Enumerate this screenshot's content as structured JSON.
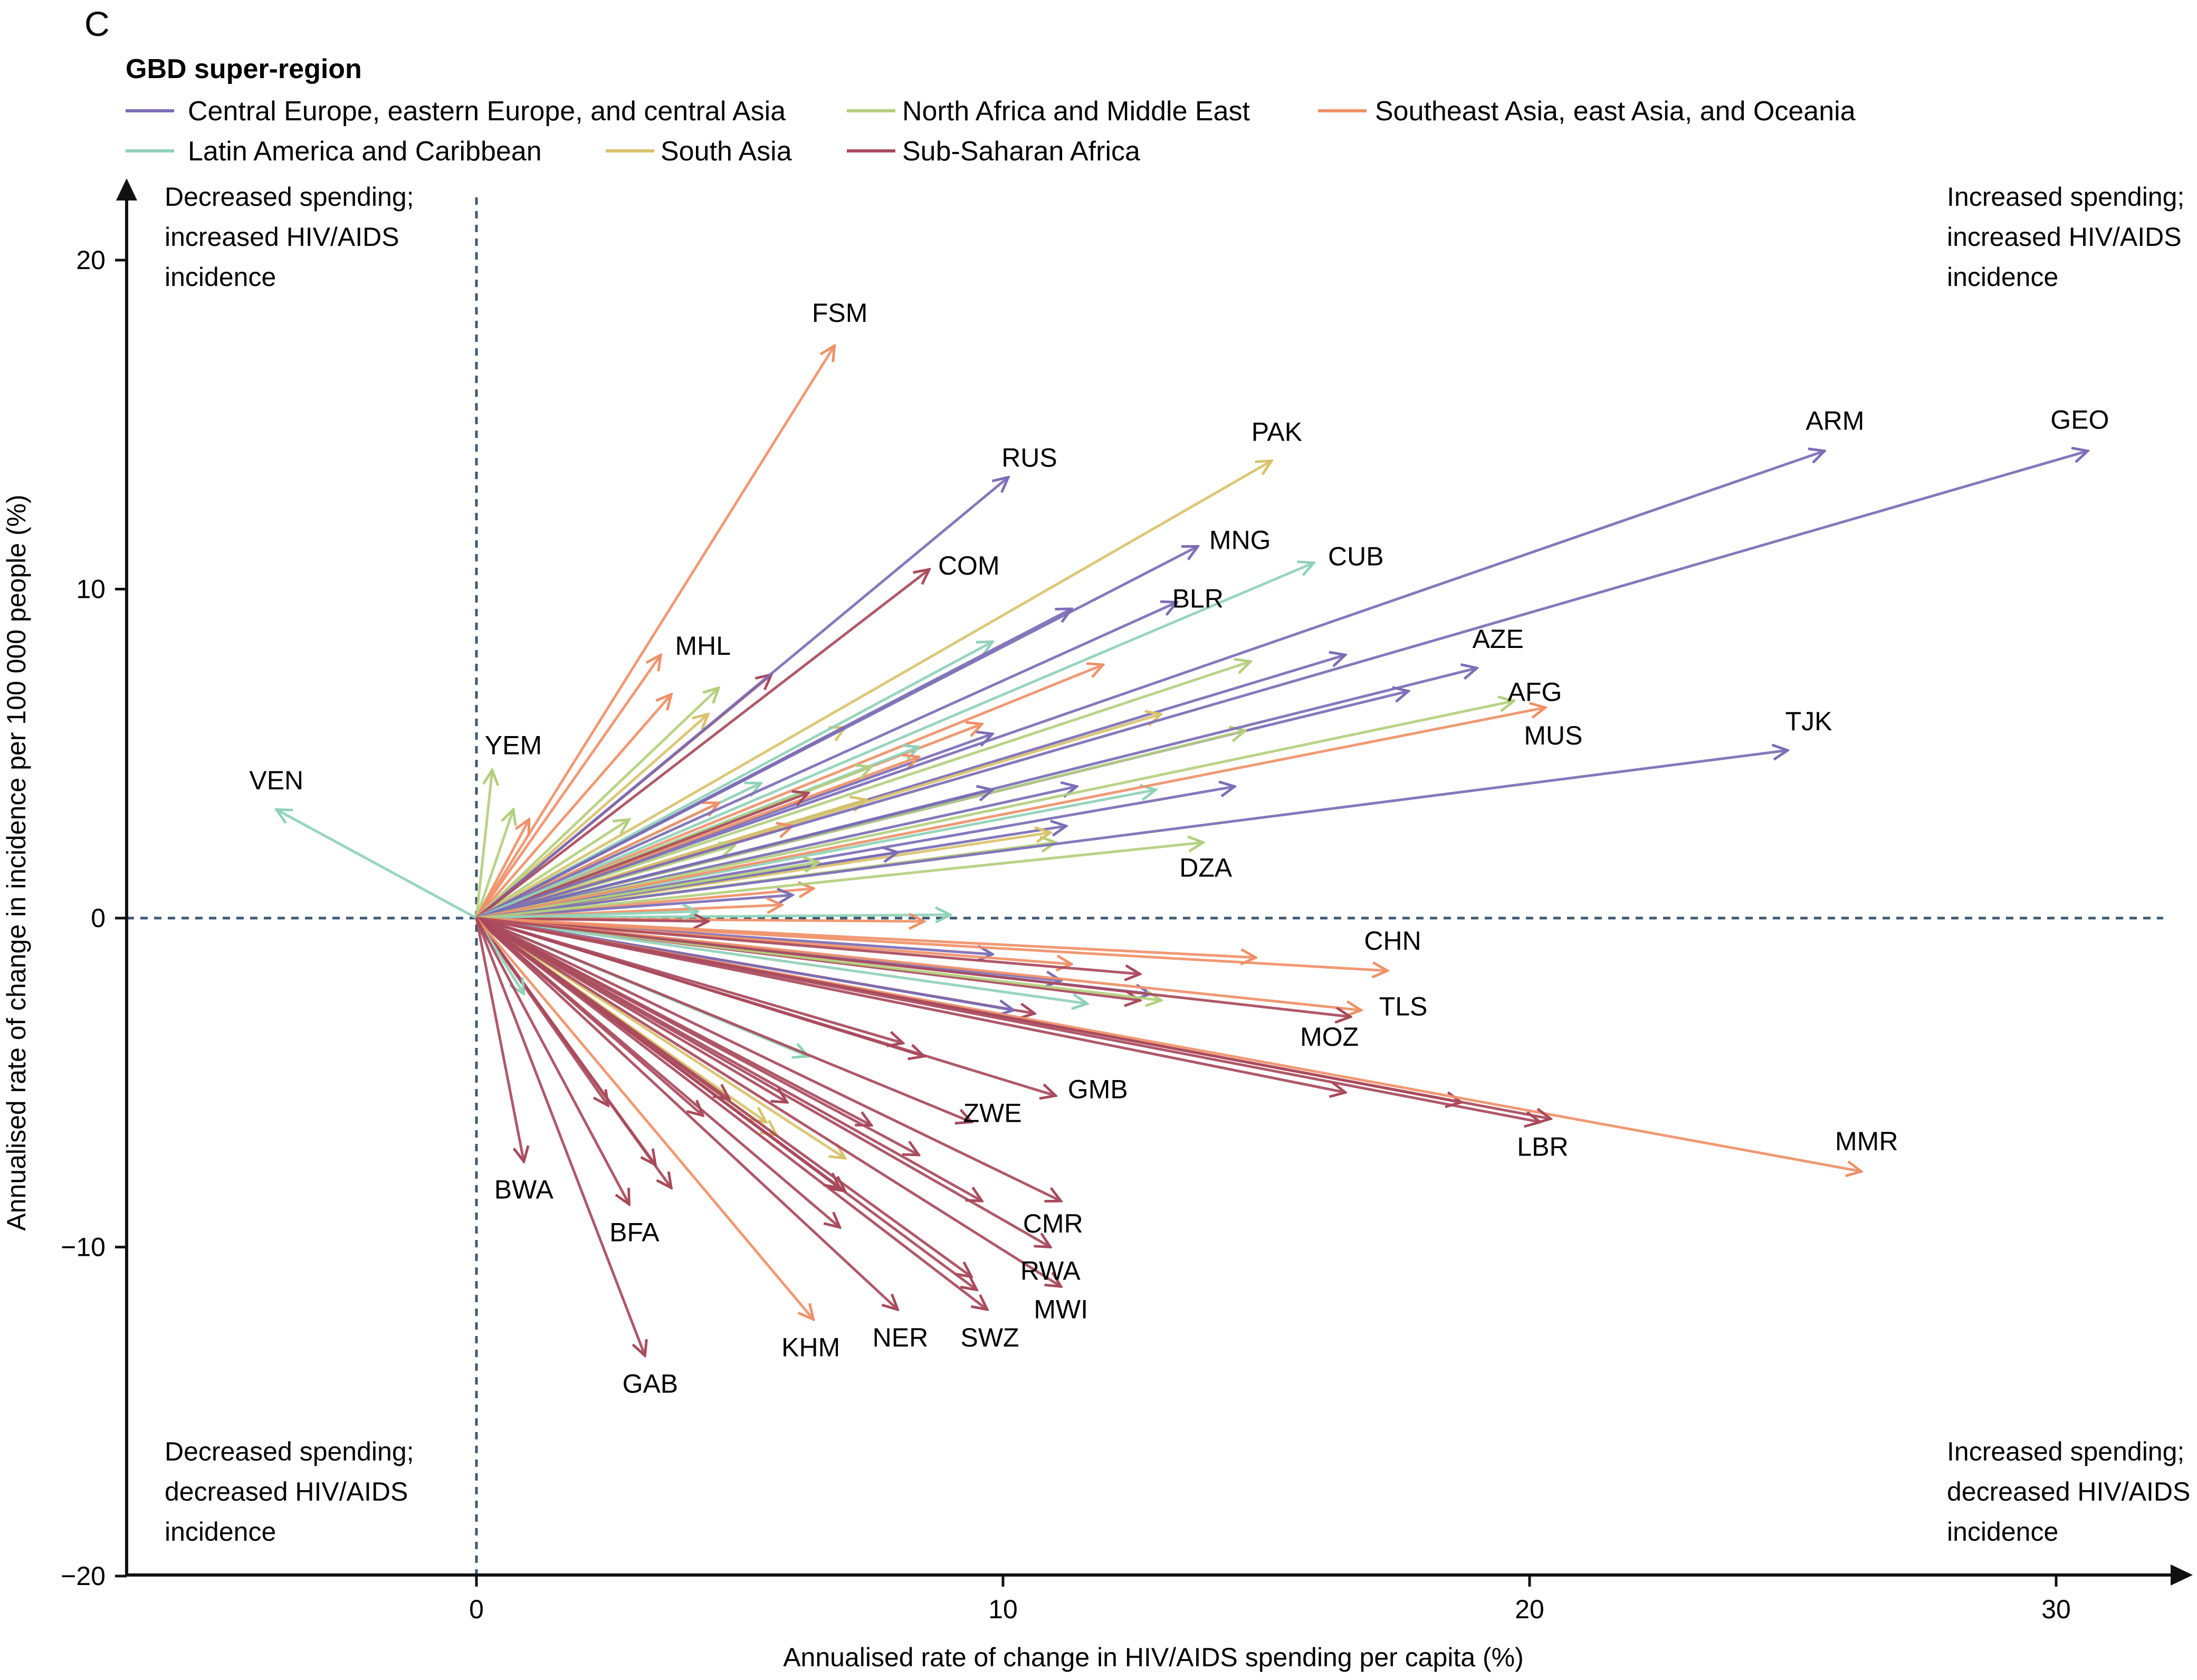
{
  "panel_label": "C",
  "legend": {
    "title": "GBD super-region",
    "items": [
      {
        "name": "Central Europe, eastern Europe, and central Asia",
        "color": "#7b6db5"
      },
      {
        "name": "North Africa and Middle East",
        "color": "#b3cf7d"
      },
      {
        "name": "Southeast Asia, east Asia, and Oceania",
        "color": "#ef9068"
      },
      {
        "name": "Latin America and Caribbean",
        "color": "#8fd1b8"
      },
      {
        "name": "South Asia",
        "color": "#d8c26a"
      },
      {
        "name": "Sub-Saharan Africa",
        "color": "#a84a5c"
      }
    ]
  },
  "quadrants": {
    "top_left": [
      "Decreased spending;",
      "increased HIV/AIDS",
      "incidence"
    ],
    "top_right": [
      "Increased spending;",
      "increased HIV/AIDS",
      "incidence"
    ],
    "bottom_left": [
      "Decreased spending;",
      "decreased HIV/AIDS",
      "incidence"
    ],
    "bottom_right": [
      "Increased spending;",
      "decreased HIV/AIDS",
      "incidence"
    ]
  },
  "chart_data": {
    "type": "scatter",
    "subtype": "vectors from origin",
    "xlabel": "Annualised rate of change in HIV/AIDS spending per capita (%)",
    "ylabel": "Annualised rate of change in incidence per 100 000 people (%)",
    "xlim": [
      -6.7,
      32.5
    ],
    "ylim": [
      -20,
      22
    ],
    "xticks": [
      0,
      10,
      20,
      30
    ],
    "yticks": [
      -20,
      -10,
      0,
      10,
      20
    ],
    "reference_lines": {
      "x": 0,
      "y": 0
    },
    "labeled_points": [
      {
        "label": "VEN",
        "x": -3.8,
        "y": 3.3,
        "region": 3
      },
      {
        "label": "YEM",
        "x": 0.3,
        "y": 4.5,
        "region": 1
      },
      {
        "label": "MHL",
        "x": 3.5,
        "y": 8.0,
        "region": 2
      },
      {
        "label": "FSM",
        "x": 6.8,
        "y": 17.4,
        "region": 2
      },
      {
        "label": "RUS",
        "x": 10.1,
        "y": 13.4,
        "region": 0
      },
      {
        "label": "COM",
        "x": 8.6,
        "y": 10.6,
        "region": 5
      },
      {
        "label": "PAK",
        "x": 15.1,
        "y": 13.9,
        "region": 4
      },
      {
        "label": "MNG",
        "x": 13.7,
        "y": 11.3,
        "region": 0
      },
      {
        "label": "BLR",
        "x": 13.3,
        "y": 9.6,
        "region": 0
      },
      {
        "label": "CUB",
        "x": 15.9,
        "y": 10.8,
        "region": 3
      },
      {
        "label": "ARM",
        "x": 25.6,
        "y": 14.2,
        "region": 0
      },
      {
        "label": "GEO",
        "x": 30.6,
        "y": 14.2,
        "region": 0
      },
      {
        "label": "AZE",
        "x": 19.0,
        "y": 7.6,
        "region": 0
      },
      {
        "label": "AFG",
        "x": 19.7,
        "y": 6.6,
        "region": 1
      },
      {
        "label": "MUS",
        "x": 20.3,
        "y": 6.4,
        "region": 2
      },
      {
        "label": "TJK",
        "x": 24.9,
        "y": 5.1,
        "region": 0
      },
      {
        "label": "DZA",
        "x": 13.8,
        "y": 2.3,
        "region": 1
      },
      {
        "label": "CHN",
        "x": 17.3,
        "y": -1.6,
        "region": 2
      },
      {
        "label": "TLS",
        "x": 16.8,
        "y": -2.8,
        "region": 2
      },
      {
        "label": "MOZ",
        "x": 16.6,
        "y": -3.0,
        "region": 5
      },
      {
        "label": "MMR",
        "x": 26.3,
        "y": -7.7,
        "region": 2
      },
      {
        "label": "LBR",
        "x": 20.4,
        "y": -6.1,
        "region": 5
      },
      {
        "label": "GMB",
        "x": 11.0,
        "y": -5.4,
        "region": 5
      },
      {
        "label": "ZWE",
        "x": 9.4,
        "y": -6.2,
        "region": 5
      },
      {
        "label": "CMR",
        "x": 11.1,
        "y": -8.6,
        "region": 5
      },
      {
        "label": "RWA",
        "x": 10.9,
        "y": -10.0,
        "region": 5
      },
      {
        "label": "MWI",
        "x": 11.1,
        "y": -11.2,
        "region": 5
      },
      {
        "label": "SWZ",
        "x": 9.7,
        "y": -11.9,
        "region": 5
      },
      {
        "label": "NER",
        "x": 8.0,
        "y": -11.9,
        "region": 5
      },
      {
        "label": "KHM",
        "x": 6.4,
        "y": -12.2,
        "region": 2
      },
      {
        "label": "GAB",
        "x": 3.2,
        "y": -13.3,
        "region": 5
      },
      {
        "label": "BFA",
        "x": 2.9,
        "y": -8.7,
        "region": 5
      },
      {
        "label": "BWA",
        "x": 0.9,
        "y": -7.4,
        "region": 5
      }
    ],
    "unlabeled_points": [
      {
        "x": 0.7,
        "y": 3.3,
        "region": 1
      },
      {
        "x": 1.0,
        "y": 3.0,
        "region": 2
      },
      {
        "x": 2.9,
        "y": 3.0,
        "region": 1
      },
      {
        "x": 3.7,
        "y": 6.8,
        "region": 2
      },
      {
        "x": 4.6,
        "y": 7.0,
        "region": 1
      },
      {
        "x": 4.4,
        "y": 6.2,
        "region": 4
      },
      {
        "x": 5.6,
        "y": 7.4,
        "region": 5
      },
      {
        "x": 7.0,
        "y": 5.8,
        "region": 4
      },
      {
        "x": 9.8,
        "y": 8.4,
        "region": 3
      },
      {
        "x": 11.3,
        "y": 9.4,
        "region": 0
      },
      {
        "x": 11.9,
        "y": 7.7,
        "region": 2
      },
      {
        "x": 14.7,
        "y": 7.8,
        "region": 1
      },
      {
        "x": 16.5,
        "y": 8.0,
        "region": 0
      },
      {
        "x": 17.7,
        "y": 6.9,
        "region": 0
      },
      {
        "x": 14.6,
        "y": 5.7,
        "region": 1
      },
      {
        "x": 13.0,
        "y": 6.2,
        "region": 4
      },
      {
        "x": 9.8,
        "y": 5.6,
        "region": 0
      },
      {
        "x": 9.6,
        "y": 5.9,
        "region": 2
      },
      {
        "x": 8.4,
        "y": 5.2,
        "region": 3
      },
      {
        "x": 8.4,
        "y": 4.9,
        "region": 2
      },
      {
        "x": 7.5,
        "y": 4.6,
        "region": 1
      },
      {
        "x": 5.4,
        "y": 4.1,
        "region": 3
      },
      {
        "x": 4.6,
        "y": 3.5,
        "region": 2
      },
      {
        "x": 6.3,
        "y": 3.8,
        "region": 5
      },
      {
        "x": 7.4,
        "y": 3.6,
        "region": 4
      },
      {
        "x": 9.8,
        "y": 3.9,
        "region": 0
      },
      {
        "x": 11.4,
        "y": 4.0,
        "region": 0
      },
      {
        "x": 12.9,
        "y": 3.9,
        "region": 3
      },
      {
        "x": 14.4,
        "y": 4.0,
        "region": 0
      },
      {
        "x": 11.2,
        "y": 2.8,
        "region": 0
      },
      {
        "x": 11.0,
        "y": 2.3,
        "region": 1
      },
      {
        "x": 10.9,
        "y": 2.6,
        "region": 4
      },
      {
        "x": 8.0,
        "y": 2.0,
        "region": 0
      },
      {
        "x": 6.5,
        "y": 1.7,
        "region": 1
      },
      {
        "x": 6.0,
        "y": 2.8,
        "region": 2
      },
      {
        "x": 4.9,
        "y": 2.2,
        "region": 1
      },
      {
        "x": 6.4,
        "y": 0.9,
        "region": 2
      },
      {
        "x": 6.0,
        "y": 0.7,
        "region": 0
      },
      {
        "x": 5.8,
        "y": 0.4,
        "region": 2
      },
      {
        "x": 9.0,
        "y": 0.1,
        "region": 3
      },
      {
        "x": 8.5,
        "y": -0.1,
        "region": 2
      },
      {
        "x": 4.4,
        "y": -0.1,
        "region": 5
      },
      {
        "x": 4.2,
        "y": 0.2,
        "region": 3
      },
      {
        "x": 9.8,
        "y": -1.1,
        "region": 0
      },
      {
        "x": 11.3,
        "y": -1.4,
        "region": 2
      },
      {
        "x": 14.8,
        "y": -1.2,
        "region": 2
      },
      {
        "x": 12.6,
        "y": -1.7,
        "region": 5
      },
      {
        "x": 11.1,
        "y": -1.9,
        "region": 0
      },
      {
        "x": 12.8,
        "y": -2.3,
        "region": 0
      },
      {
        "x": 12.6,
        "y": -2.5,
        "region": 5
      },
      {
        "x": 13.0,
        "y": -2.5,
        "region": 1
      },
      {
        "x": 11.6,
        "y": -2.6,
        "region": 3
      },
      {
        "x": 10.6,
        "y": -2.9,
        "region": 5
      },
      {
        "x": 10.2,
        "y": -2.8,
        "region": 0
      },
      {
        "x": 8.1,
        "y": -3.8,
        "region": 5
      },
      {
        "x": 8.5,
        "y": -4.2,
        "region": 5
      },
      {
        "x": 16.5,
        "y": -5.3,
        "region": 5
      },
      {
        "x": 18.7,
        "y": -5.6,
        "region": 5
      },
      {
        "x": 20.2,
        "y": -6.2,
        "region": 5
      },
      {
        "x": 6.3,
        "y": -4.2,
        "region": 3
      },
      {
        "x": 5.5,
        "y": -6.2,
        "region": 4
      },
      {
        "x": 5.7,
        "y": -6.6,
        "region": 4
      },
      {
        "x": 7.0,
        "y": -7.3,
        "region": 4
      },
      {
        "x": 7.5,
        "y": -6.3,
        "region": 5
      },
      {
        "x": 8.4,
        "y": -7.2,
        "region": 5
      },
      {
        "x": 9.6,
        "y": -8.6,
        "region": 5
      },
      {
        "x": 7.0,
        "y": -8.3,
        "region": 5
      },
      {
        "x": 6.9,
        "y": -8.2,
        "region": 5
      },
      {
        "x": 6.9,
        "y": -9.4,
        "region": 5
      },
      {
        "x": 9.4,
        "y": -10.9,
        "region": 5
      },
      {
        "x": 9.5,
        "y": -11.3,
        "region": 5
      },
      {
        "x": 4.3,
        "y": -6.0,
        "region": 5
      },
      {
        "x": 3.7,
        "y": -8.2,
        "region": 5
      },
      {
        "x": 3.4,
        "y": -7.5,
        "region": 5
      },
      {
        "x": 2.5,
        "y": -5.7,
        "region": 5
      },
      {
        "x": 4.8,
        "y": -5.5,
        "region": 5
      },
      {
        "x": 0.9,
        "y": -2.3,
        "region": 3
      },
      {
        "x": 5.9,
        "y": -5.6,
        "region": 5
      }
    ]
  }
}
